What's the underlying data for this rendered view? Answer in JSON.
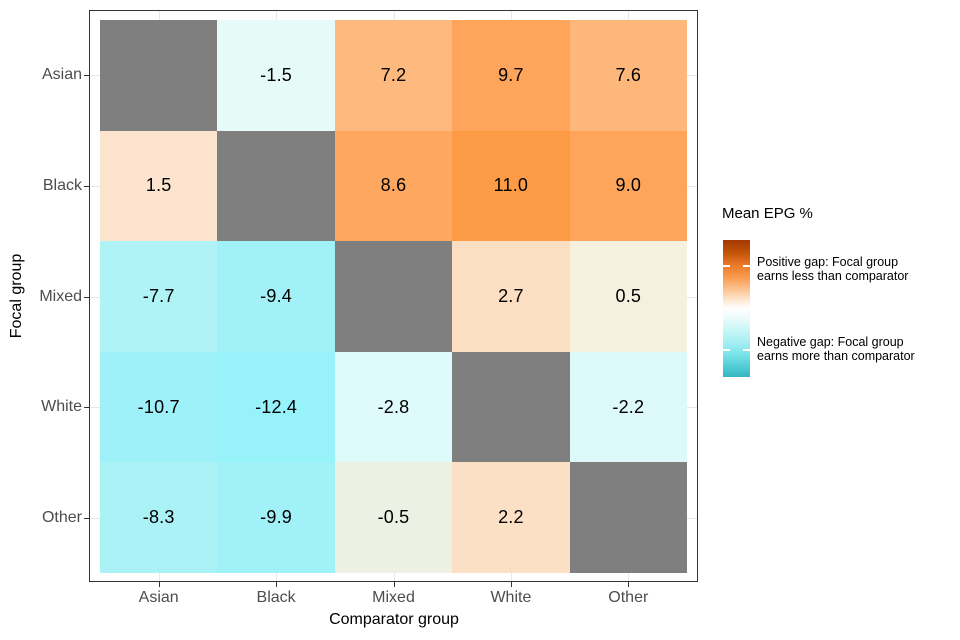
{
  "chart_data": {
    "type": "heatmap",
    "title": "",
    "xlabel": "Comparator group",
    "ylabel": "Focal group",
    "x_categories": [
      "Asian",
      "Black",
      "Mixed",
      "White",
      "Other"
    ],
    "y_categories": [
      "Asian",
      "Black",
      "Mixed",
      "White",
      "Other"
    ],
    "value_unit": "Mean EPG %",
    "diagonal_color": "#7F7F7F",
    "grid_color": "#E8E8E8",
    "panel_border_color": "#333333",
    "axis_text_color": "#4D4D4D",
    "rows": [
      {
        "focal": "Asian",
        "cells": [
          {
            "comparator": "Asian",
            "value": null,
            "label": "",
            "color": "#7F7F7F"
          },
          {
            "comparator": "Black",
            "value": -1.5,
            "label": "-1.5",
            "color": "#E6FBF8"
          },
          {
            "comparator": "Mixed",
            "value": 7.2,
            "label": "7.2",
            "color": "#FDB97E"
          },
          {
            "comparator": "White",
            "value": 9.7,
            "label": "9.7",
            "color": "#FEA55B"
          },
          {
            "comparator": "Other",
            "value": 7.6,
            "label": "7.6",
            "color": "#FDB77B"
          }
        ]
      },
      {
        "focal": "Black",
        "cells": [
          {
            "comparator": "Asian",
            "value": 1.5,
            "label": "1.5",
            "color": "#FCE4CE"
          },
          {
            "comparator": "Black",
            "value": null,
            "label": "",
            "color": "#7F7F7F"
          },
          {
            "comparator": "Mixed",
            "value": 8.6,
            "label": "8.6",
            "color": "#FEA85F"
          },
          {
            "comparator": "White",
            "value": 11.0,
            "label": "11.0",
            "color": "#FD9B47"
          },
          {
            "comparator": "Other",
            "value": 9.0,
            "label": "9.0",
            "color": "#FEA45B"
          }
        ]
      },
      {
        "focal": "Mixed",
        "cells": [
          {
            "comparator": "Asian",
            "value": -7.7,
            "label": "-7.7",
            "color": "#AFF3F6"
          },
          {
            "comparator": "Black",
            "value": -9.4,
            "label": "-9.4",
            "color": "#A3F1F8"
          },
          {
            "comparator": "Mixed",
            "value": null,
            "label": "",
            "color": "#7F7F7F"
          },
          {
            "comparator": "White",
            "value": 2.7,
            "label": "2.7",
            "color": "#FCDEC2"
          },
          {
            "comparator": "Other",
            "value": 0.5,
            "label": "0.5",
            "color": "#F6F0DF"
          }
        ]
      },
      {
        "focal": "White",
        "cells": [
          {
            "comparator": "Asian",
            "value": -10.7,
            "label": "-10.7",
            "color": "#9EF0F9"
          },
          {
            "comparator": "Black",
            "value": -12.4,
            "label": "-12.4",
            "color": "#97F2FA"
          },
          {
            "comparator": "Mixed",
            "value": -2.8,
            "label": "-2.8",
            "color": "#DFFAFB"
          },
          {
            "comparator": "White",
            "value": null,
            "label": "",
            "color": "#7F7F7F"
          },
          {
            "comparator": "Other",
            "value": -2.2,
            "label": "-2.2",
            "color": "#DEF9FA"
          }
        ]
      },
      {
        "focal": "Other",
        "cells": [
          {
            "comparator": "Asian",
            "value": -8.3,
            "label": "-8.3",
            "color": "#ABF2F7"
          },
          {
            "comparator": "Black",
            "value": -9.9,
            "label": "-9.9",
            "color": "#A1F1F8"
          },
          {
            "comparator": "Mixed",
            "value": -0.5,
            "label": "-0.5",
            "color": "#EDF1E4"
          },
          {
            "comparator": "White",
            "value": 2.2,
            "label": "2.2",
            "color": "#FCE0C6"
          },
          {
            "comparator": "Other",
            "value": null,
            "label": "",
            "color": "#7F7F7F"
          }
        ]
      }
    ],
    "legend": {
      "title": "Mean EPG %",
      "positive_label": "Positive gap: Focal group\nearns less than comparator",
      "negative_label": "Negative gap: Focal group\nearns more than comparator",
      "gradient_stops": [
        {
          "pos": 0,
          "color": "#A23800"
        },
        {
          "pos": 10,
          "color": "#C6560A"
        },
        {
          "pos": 19,
          "color": "#ED7D2B"
        },
        {
          "pos": 28,
          "color": "#FA9E55"
        },
        {
          "pos": 36,
          "color": "#FCC391"
        },
        {
          "pos": 44,
          "color": "#FEE8D3"
        },
        {
          "pos": 50,
          "color": "#FFFFFF"
        },
        {
          "pos": 57,
          "color": "#EBFBFA"
        },
        {
          "pos": 66,
          "color": "#C8F6F7"
        },
        {
          "pos": 76,
          "color": "#A0EEF3"
        },
        {
          "pos": 85,
          "color": "#74E0E6"
        },
        {
          "pos": 93,
          "color": "#4FCBD3"
        },
        {
          "pos": 100,
          "color": "#35B4C2"
        }
      ]
    }
  }
}
